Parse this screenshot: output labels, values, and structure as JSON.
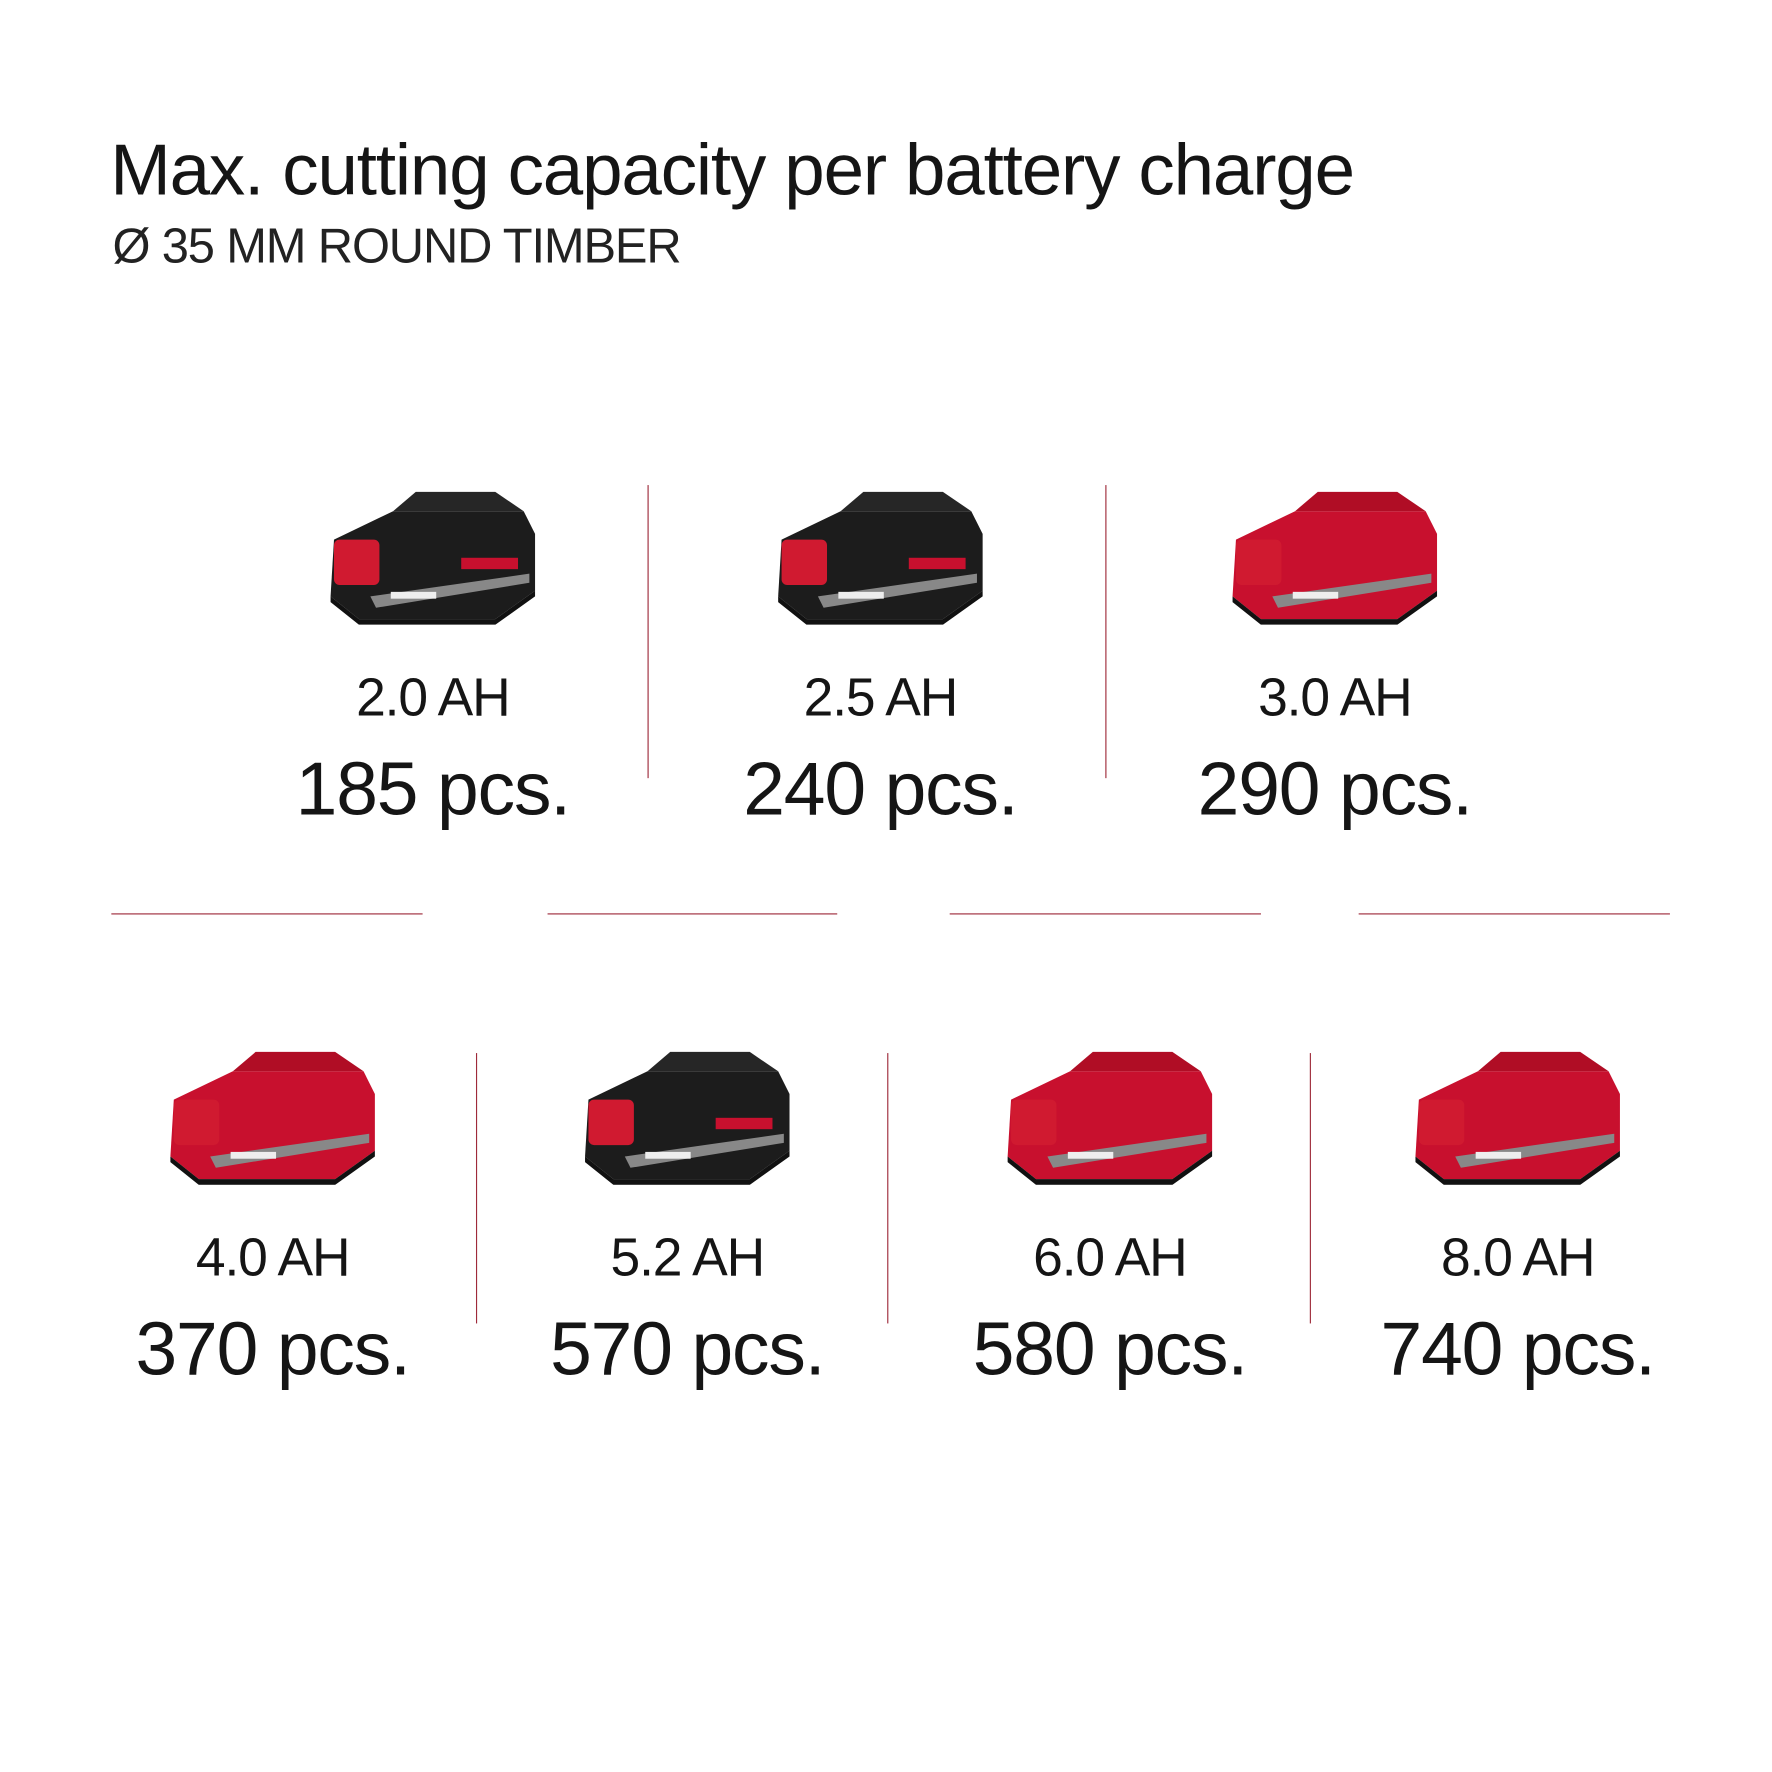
{
  "title": "Max. cutting capacity per battery charge",
  "subtitle": "Ø 35 MM ROUND TIMBER",
  "colors": {
    "brand_red": "#c8102e",
    "divider": "#9e2a3a",
    "battery_black": "#1c1c1c"
  },
  "batteries": [
    {
      "capacity": "2.0 AH",
      "result": "185 pcs.",
      "style": "black"
    },
    {
      "capacity": "2.5 AH",
      "result": "240 pcs.",
      "style": "black"
    },
    {
      "capacity": "3.0 AH",
      "result": "290 pcs.",
      "style": "red"
    },
    {
      "capacity": "4.0 AH",
      "result": "370 pcs.",
      "style": "red"
    },
    {
      "capacity": "5.2 AH",
      "result": "570 pcs.",
      "style": "black"
    },
    {
      "capacity": "6.0 AH",
      "result": "580 pcs.",
      "style": "red"
    },
    {
      "capacity": "8.0 AH",
      "result": "740 pcs.",
      "style": "red"
    }
  ]
}
